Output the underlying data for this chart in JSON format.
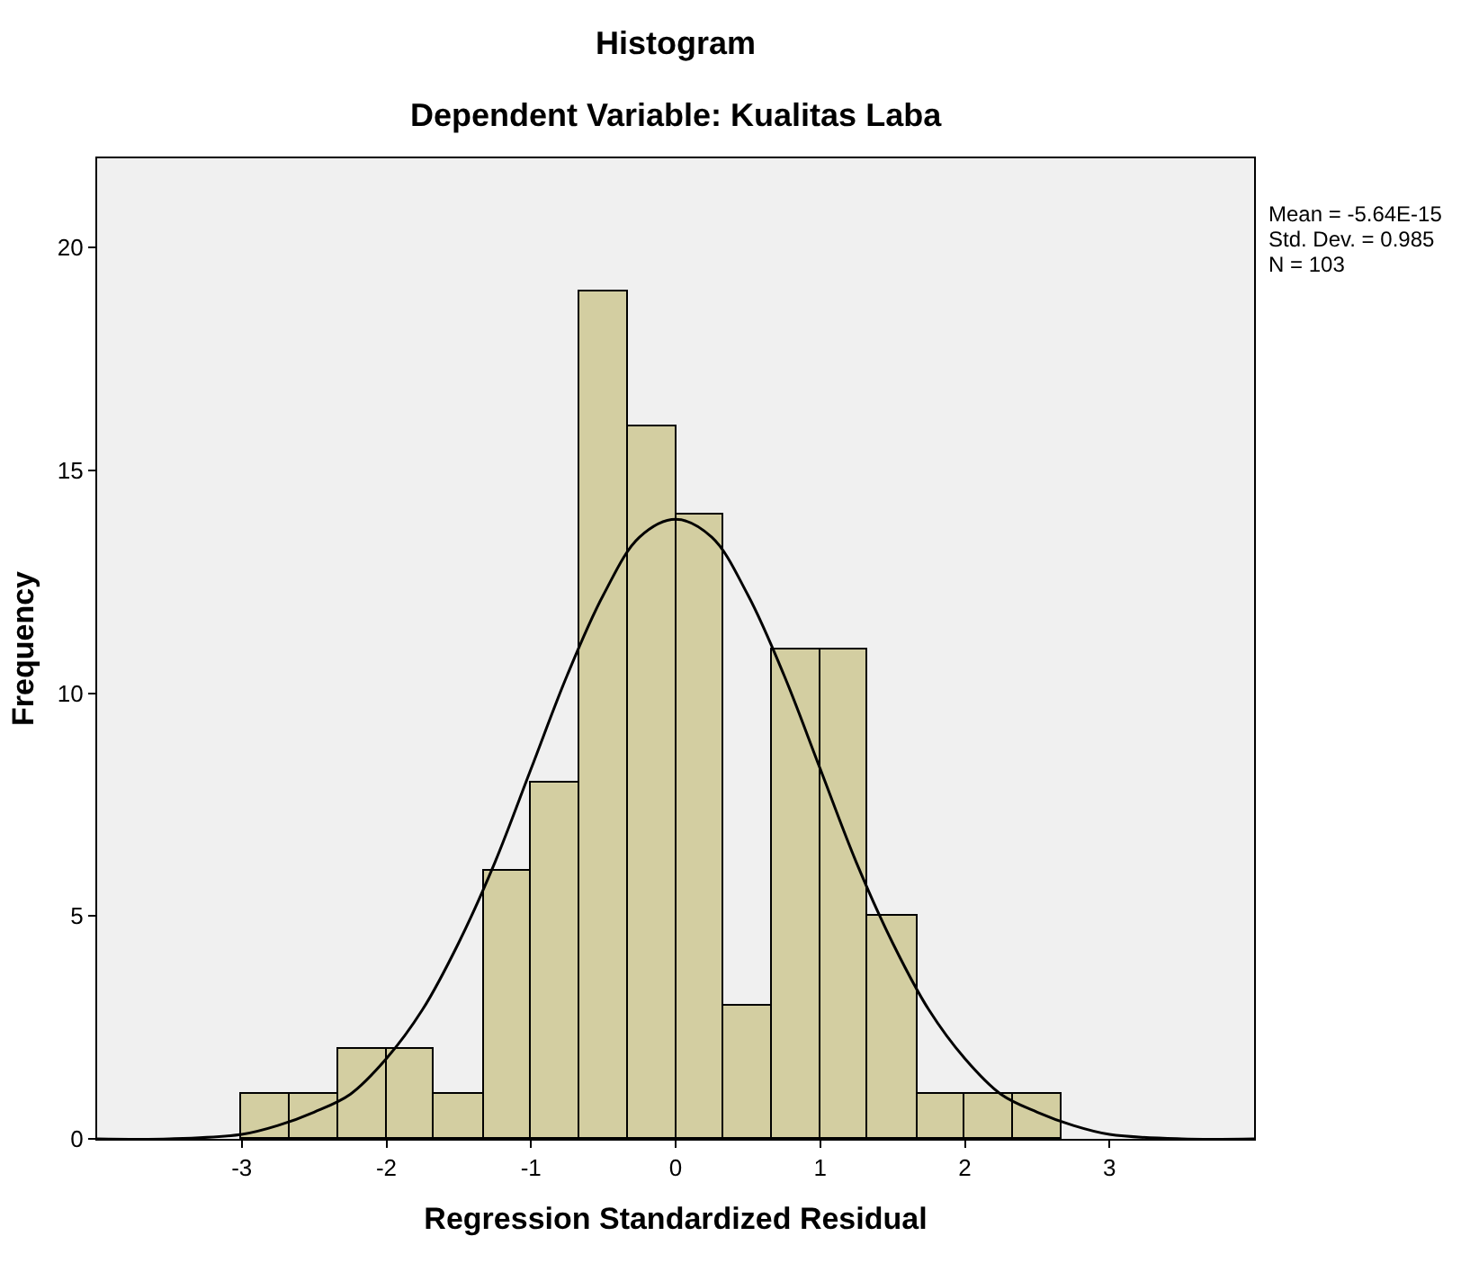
{
  "chart_data": {
    "type": "histogram",
    "title": "Histogram",
    "subtitle": "Dependent Variable: Kualitas Laba",
    "xlabel": "Regression Standardized Residual",
    "ylabel": "Frequency",
    "bins": [
      -3.0,
      -2.67,
      -2.33,
      -2.0,
      -1.67,
      -1.33,
      -1.0,
      -0.67,
      -0.33,
      0.0,
      0.33,
      0.67,
      1.0,
      1.33,
      1.67,
      2.0,
      2.33,
      2.67
    ],
    "values": [
      1,
      1,
      2,
      2,
      1,
      6,
      8,
      19,
      16,
      14,
      3,
      11,
      11,
      5,
      1,
      1,
      1
    ],
    "color": "#d3cea1",
    "series": [
      {
        "type": "line",
        "color": "#000000",
        "x": [
          -4,
          -3.5,
          -3,
          -2.75,
          -2.5,
          -2.25,
          -2,
          -1.75,
          -1.5,
          -1.25,
          -1,
          -0.75,
          -0.5,
          -0.25,
          0,
          0.25,
          0.5,
          0.75,
          1,
          1.25,
          1.5,
          1.75,
          2,
          2.25,
          2.5,
          2.75,
          3,
          3.5,
          4
        ],
        "values": [
          0.0,
          0.0,
          0.1,
          0.3,
          0.6,
          1.0,
          1.8,
          2.9,
          4.4,
          6.2,
          8.3,
          10.4,
          12.2,
          13.5,
          13.9,
          13.5,
          12.2,
          10.4,
          8.3,
          6.2,
          4.4,
          2.9,
          1.8,
          1.0,
          0.6,
          0.3,
          0.1,
          0.0,
          0.0
        ]
      }
    ],
    "xlim": [
      -4,
      4
    ],
    "xticks": [
      -3,
      -2,
      -1,
      0,
      1,
      2,
      3
    ],
    "ylim": [
      0,
      22
    ],
    "yticks": [
      0,
      5,
      10,
      15,
      20
    ],
    "annotations": [
      "Mean = -5.64E-15",
      "Std. Dev. = 0.985",
      "N = 103"
    ],
    "grid": false
  }
}
